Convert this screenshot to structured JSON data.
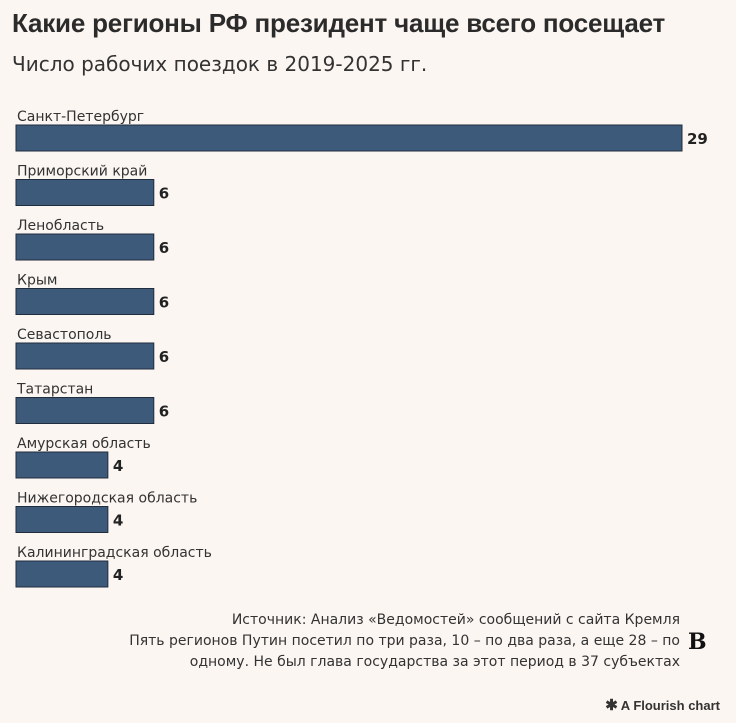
{
  "title": "Какие регионы РФ президент чаще всего посещает",
  "subtitle": "Число рабочих поездок в 2019-2025 гг.",
  "chart_data": {
    "type": "bar",
    "orientation": "horizontal",
    "categories": [
      "Санкт-Петербург",
      "Приморский край",
      "Ленобласть",
      "Крым",
      "Севастополь",
      "Татарстан",
      "Амурская область",
      "Нижегородская область",
      "Калининградская область"
    ],
    "values": [
      29,
      6,
      6,
      6,
      6,
      6,
      4,
      4,
      4
    ],
    "xlim": [
      0,
      29
    ],
    "bar_color": "#3d5a7a",
    "grid": false,
    "legend": "none"
  },
  "notes": {
    "source": "Источник: Анализ «Ведомостей» сообщений с сайта Кремля",
    "line1": "Пять регионов Путин посетил по три раза, 10 – по два раза, а еще 28 – по",
    "line2": "одному. Не был глава государства за этот период в 37 субъектах"
  },
  "logo": "B",
  "credit": "A Flourish chart",
  "credit_icon": "asterisk-icon"
}
